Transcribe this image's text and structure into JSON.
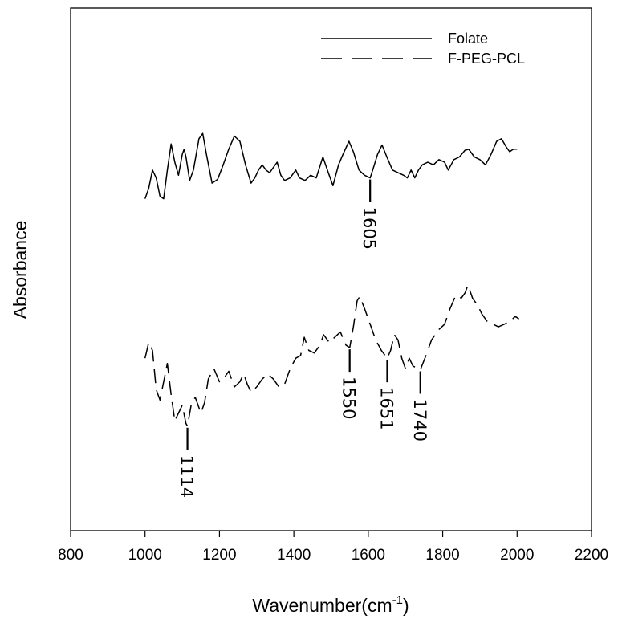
{
  "chart_data": {
    "type": "line",
    "title": "",
    "xlabel": "Wavenumber(cm",
    "xlabel_sup": "-1",
    "xlabel_suffix": ")",
    "ylabel": "Absorbance",
    "xlim": [
      800,
      2200
    ],
    "ylim": [
      0,
      1
    ],
    "x_ticks": [
      800,
      1000,
      1200,
      1400,
      1600,
      1800,
      2000,
      2200
    ],
    "y_ticks_shown": false,
    "grid": false,
    "legend_position": "top-right",
    "series": [
      {
        "name": "Folate",
        "style": "solid",
        "color": "#000000",
        "points": [
          [
            1000,
            0.635
          ],
          [
            1010,
            0.655
          ],
          [
            1020,
            0.69
          ],
          [
            1030,
            0.675
          ],
          [
            1040,
            0.64
          ],
          [
            1050,
            0.635
          ],
          [
            1060,
            0.69
          ],
          [
            1070,
            0.74
          ],
          [
            1080,
            0.705
          ],
          [
            1090,
            0.68
          ],
          [
            1100,
            0.72
          ],
          [
            1105,
            0.73
          ],
          [
            1110,
            0.715
          ],
          [
            1120,
            0.67
          ],
          [
            1130,
            0.69
          ],
          [
            1145,
            0.75
          ],
          [
            1155,
            0.76
          ],
          [
            1165,
            0.72
          ],
          [
            1180,
            0.665
          ],
          [
            1195,
            0.672
          ],
          [
            1210,
            0.7
          ],
          [
            1225,
            0.73
          ],
          [
            1240,
            0.755
          ],
          [
            1255,
            0.745
          ],
          [
            1270,
            0.7
          ],
          [
            1285,
            0.665
          ],
          [
            1295,
            0.675
          ],
          [
            1305,
            0.69
          ],
          [
            1315,
            0.7
          ],
          [
            1325,
            0.69
          ],
          [
            1335,
            0.685
          ],
          [
            1345,
            0.695
          ],
          [
            1355,
            0.705
          ],
          [
            1365,
            0.68
          ],
          [
            1375,
            0.67
          ],
          [
            1390,
            0.675
          ],
          [
            1405,
            0.69
          ],
          [
            1415,
            0.675
          ],
          [
            1430,
            0.67
          ],
          [
            1445,
            0.68
          ],
          [
            1460,
            0.675
          ],
          [
            1478,
            0.715
          ],
          [
            1490,
            0.69
          ],
          [
            1505,
            0.66
          ],
          [
            1520,
            0.7
          ],
          [
            1532,
            0.72
          ],
          [
            1548,
            0.745
          ],
          [
            1560,
            0.725
          ],
          [
            1575,
            0.69
          ],
          [
            1590,
            0.68
          ],
          [
            1605,
            0.675
          ],
          [
            1612,
            0.69
          ],
          [
            1625,
            0.72
          ],
          [
            1637,
            0.738
          ],
          [
            1650,
            0.715
          ],
          [
            1665,
            0.69
          ],
          [
            1680,
            0.685
          ],
          [
            1695,
            0.68
          ],
          [
            1705,
            0.675
          ],
          [
            1715,
            0.69
          ],
          [
            1725,
            0.675
          ],
          [
            1735,
            0.69
          ],
          [
            1745,
            0.7
          ],
          [
            1760,
            0.705
          ],
          [
            1775,
            0.7
          ],
          [
            1790,
            0.71
          ],
          [
            1805,
            0.705
          ],
          [
            1815,
            0.69
          ],
          [
            1830,
            0.71
          ],
          [
            1845,
            0.715
          ],
          [
            1860,
            0.728
          ],
          [
            1870,
            0.73
          ],
          [
            1885,
            0.715
          ],
          [
            1900,
            0.71
          ],
          [
            1915,
            0.7
          ],
          [
            1930,
            0.72
          ],
          [
            1945,
            0.745
          ],
          [
            1958,
            0.75
          ],
          [
            1970,
            0.735
          ],
          [
            1980,
            0.725
          ],
          [
            1990,
            0.73
          ],
          [
            2000,
            0.73
          ]
        ]
      },
      {
        "name": "F-PEG-PCL",
        "style": "dashed",
        "color": "#000000",
        "points": [
          [
            1000,
            0.33
          ],
          [
            1010,
            0.36
          ],
          [
            1020,
            0.345
          ],
          [
            1030,
            0.27
          ],
          [
            1040,
            0.25
          ],
          [
            1050,
            0.285
          ],
          [
            1060,
            0.32
          ],
          [
            1070,
            0.26
          ],
          [
            1080,
            0.21
          ],
          [
            1090,
            0.225
          ],
          [
            1100,
            0.24
          ],
          [
            1110,
            0.205
          ],
          [
            1114,
            0.2
          ],
          [
            1125,
            0.245
          ],
          [
            1135,
            0.255
          ],
          [
            1150,
            0.225
          ],
          [
            1160,
            0.245
          ],
          [
            1170,
            0.29
          ],
          [
            1185,
            0.31
          ],
          [
            1200,
            0.285
          ],
          [
            1215,
            0.295
          ],
          [
            1225,
            0.305
          ],
          [
            1240,
            0.275
          ],
          [
            1255,
            0.285
          ],
          [
            1265,
            0.3
          ],
          [
            1275,
            0.28
          ],
          [
            1285,
            0.265
          ],
          [
            1300,
            0.275
          ],
          [
            1315,
            0.29
          ],
          [
            1330,
            0.3
          ],
          [
            1345,
            0.29
          ],
          [
            1360,
            0.275
          ],
          [
            1375,
            0.28
          ],
          [
            1390,
            0.31
          ],
          [
            1405,
            0.33
          ],
          [
            1418,
            0.335
          ],
          [
            1428,
            0.37
          ],
          [
            1440,
            0.345
          ],
          [
            1455,
            0.34
          ],
          [
            1470,
            0.355
          ],
          [
            1480,
            0.375
          ],
          [
            1495,
            0.36
          ],
          [
            1510,
            0.37
          ],
          [
            1525,
            0.38
          ],
          [
            1540,
            0.355
          ],
          [
            1550,
            0.35
          ],
          [
            1560,
            0.39
          ],
          [
            1570,
            0.44
          ],
          [
            1577,
            0.448
          ],
          [
            1590,
            0.425
          ],
          [
            1605,
            0.395
          ],
          [
            1620,
            0.365
          ],
          [
            1635,
            0.345
          ],
          [
            1651,
            0.33
          ],
          [
            1660,
            0.345
          ],
          [
            1670,
            0.375
          ],
          [
            1680,
            0.365
          ],
          [
            1690,
            0.33
          ],
          [
            1700,
            0.31
          ],
          [
            1710,
            0.33
          ],
          [
            1720,
            0.315
          ],
          [
            1740,
            0.308
          ],
          [
            1755,
            0.335
          ],
          [
            1770,
            0.365
          ],
          [
            1790,
            0.385
          ],
          [
            1805,
            0.395
          ],
          [
            1820,
            0.425
          ],
          [
            1835,
            0.45
          ],
          [
            1850,
            0.445
          ],
          [
            1860,
            0.455
          ],
          [
            1868,
            0.47
          ],
          [
            1880,
            0.445
          ],
          [
            1895,
            0.43
          ],
          [
            1905,
            0.415
          ],
          [
            1920,
            0.4
          ],
          [
            1935,
            0.395
          ],
          [
            1950,
            0.39
          ],
          [
            1965,
            0.395
          ],
          [
            1980,
            0.4
          ],
          [
            1995,
            0.41
          ],
          [
            2005,
            0.405
          ]
        ]
      }
    ],
    "annotations": [
      {
        "label": "1605",
        "x": 1605,
        "series": "Folate"
      },
      {
        "label": "1114",
        "x": 1114,
        "series": "F-PEG-PCL"
      },
      {
        "label": "1550",
        "x": 1550,
        "series": "F-PEG-PCL"
      },
      {
        "label": "1651",
        "x": 1651,
        "series": "F-PEG-PCL"
      },
      {
        "label": "1740",
        "x": 1740,
        "series": "F-PEG-PCL"
      }
    ]
  }
}
